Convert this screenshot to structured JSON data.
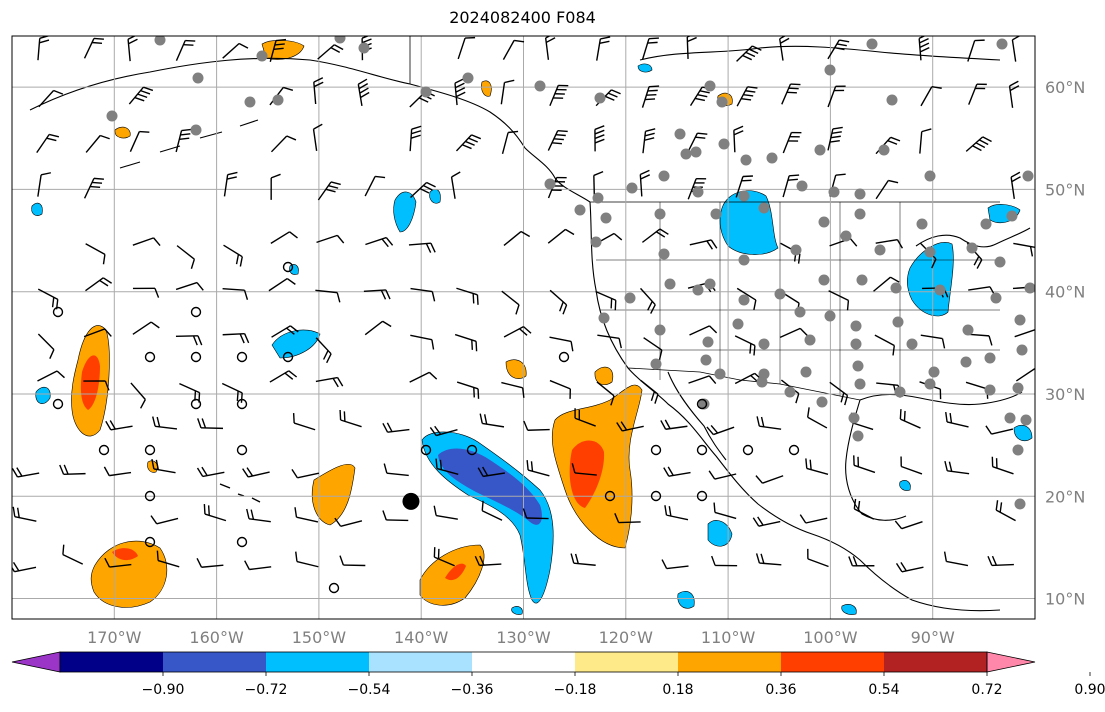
{
  "title": "2024082400 F084",
  "map": {
    "lon_range": [
      -180,
      -80
    ],
    "lat_range": [
      8,
      65
    ],
    "lon_ticks": [
      {
        "value": -170,
        "label": "170°W"
      },
      {
        "value": -160,
        "label": "160°W"
      },
      {
        "value": -150,
        "label": "150°W"
      },
      {
        "value": -140,
        "label": "140°W"
      },
      {
        "value": -130,
        "label": "130°W"
      },
      {
        "value": -120,
        "label": "120°W"
      },
      {
        "value": -110,
        "label": "110°W"
      },
      {
        "value": -100,
        "label": "100°W"
      },
      {
        "value": -90,
        "label": "90°W"
      }
    ],
    "lat_ticks": [
      {
        "value": 60,
        "label": "60°N"
      },
      {
        "value": 50,
        "label": "50°N"
      },
      {
        "value": 40,
        "label": "40°N"
      },
      {
        "value": 30,
        "label": "30°N"
      },
      {
        "value": 20,
        "label": "20°N"
      },
      {
        "value": 10,
        "label": "10°N"
      }
    ],
    "grid": true,
    "storm_marker": {
      "lon": -141,
      "lat": 19.5
    }
  },
  "colorbar": {
    "colors": [
      "#9b35c8",
      "#000088",
      "#3757c9",
      "#00bfff",
      "#a9e2ff",
      "#ffffff",
      "#ffea8a",
      "#ffa500",
      "#ff3f00",
      "#b22222",
      "#ff88aa"
    ],
    "bounds": [
      -0.9,
      -0.72,
      -0.54,
      -0.36,
      -0.18,
      0.18,
      0.36,
      0.54,
      0.72,
      0.9
    ],
    "tick_labels": [
      "−0.90",
      "−0.72",
      "−0.54",
      "−0.36",
      "−0.18",
      "0.18",
      "0.36",
      "0.54",
      "0.72",
      "0.90"
    ],
    "extend": "both"
  }
}
